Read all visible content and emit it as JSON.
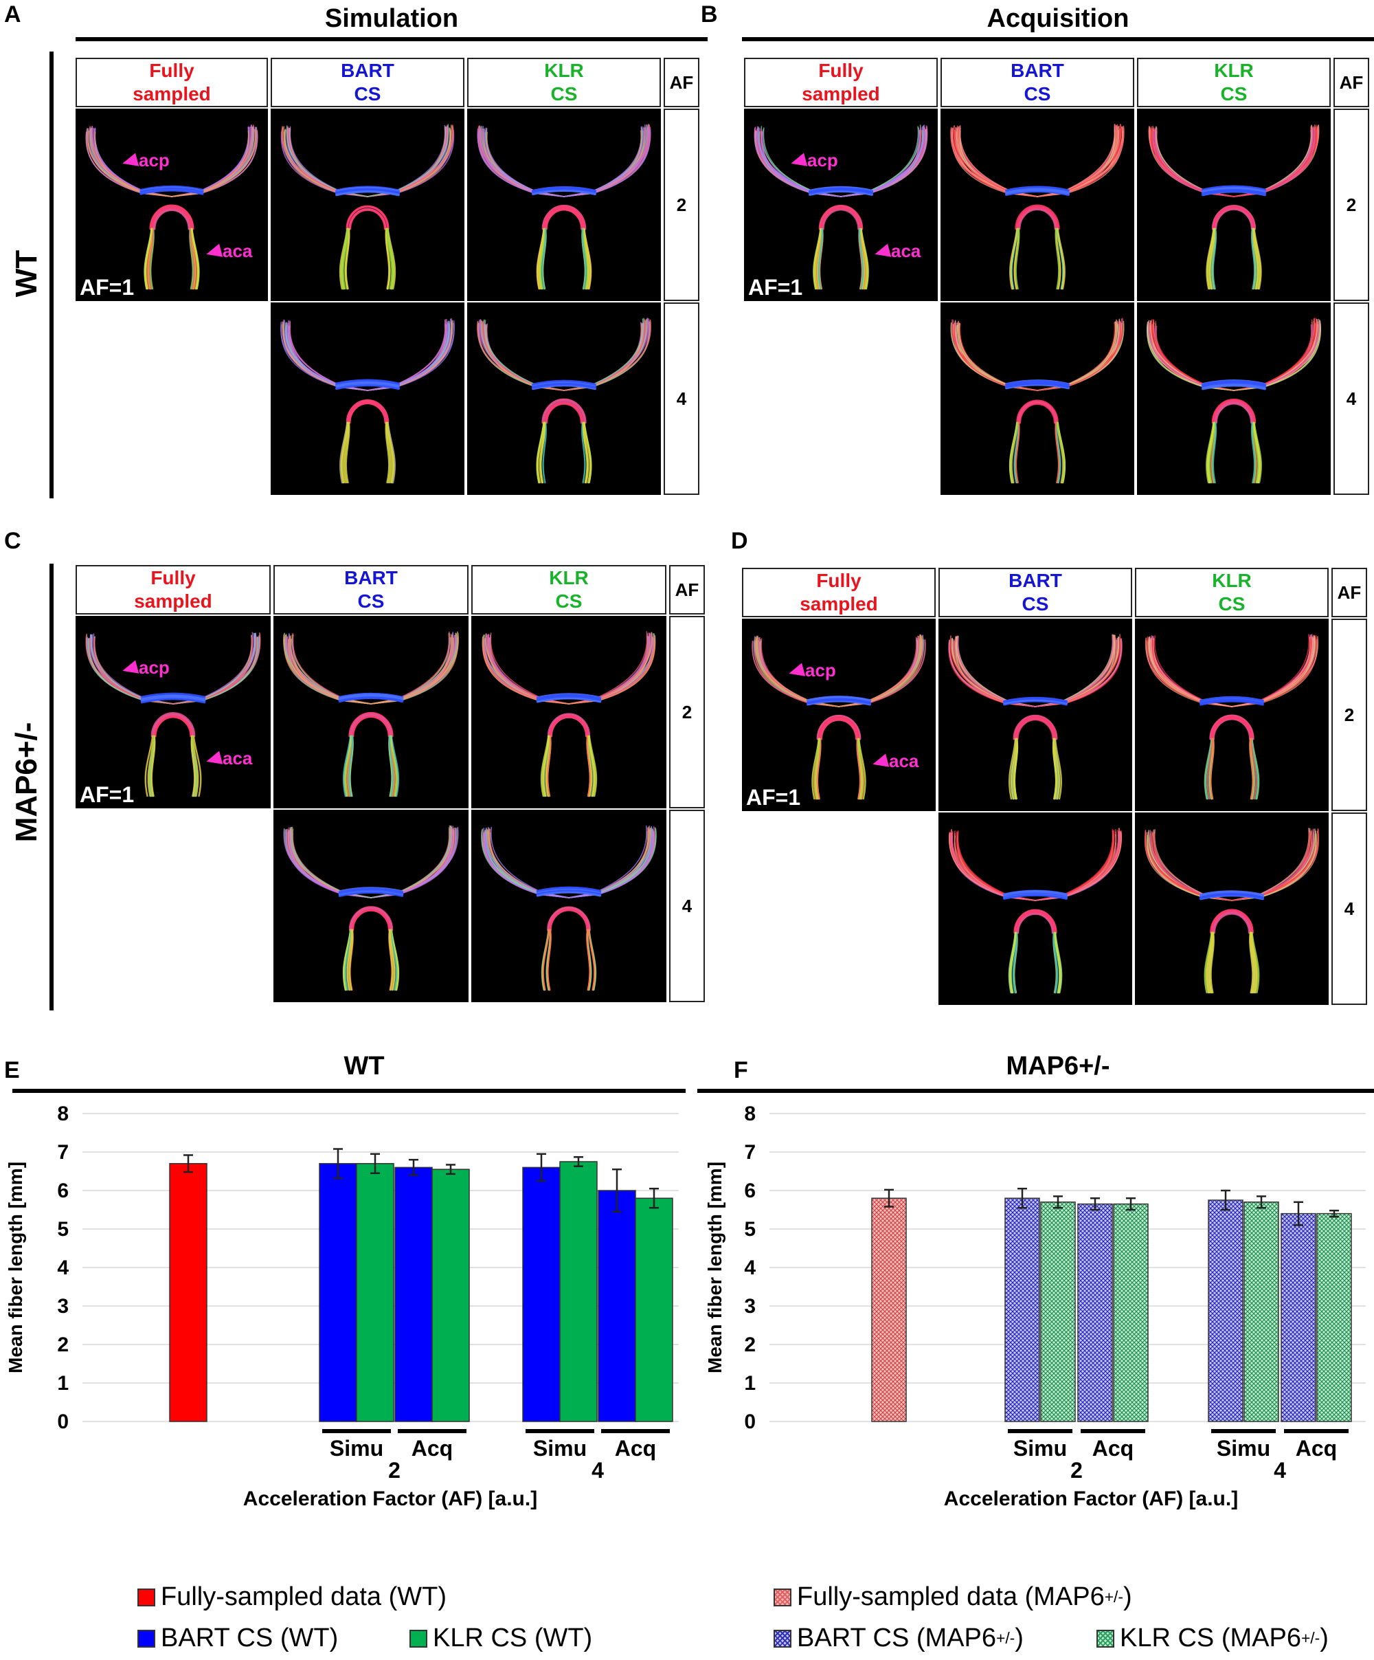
{
  "panels": {
    "A": {
      "letter": "A",
      "title": "Simulation"
    },
    "B": {
      "letter": "B",
      "title": "Acquisition"
    },
    "C": {
      "letter": "C"
    },
    "D": {
      "letter": "D"
    },
    "E": {
      "letter": "E",
      "title": "WT"
    },
    "F": {
      "letter": "F",
      "title": "MAP6+/-"
    }
  },
  "row_labels": {
    "wt": "WT",
    "map6": "MAP6+/-"
  },
  "grid_headers": {
    "fully_line1": "Fully",
    "fully_line2": "sampled",
    "bart_line1": "BART",
    "bart_line2": "CS",
    "klr_line1": "KLR",
    "klr_line2": "CS",
    "af": "AF"
  },
  "af_rows": [
    "2",
    "4"
  ],
  "image_labels": {
    "af1": "AF=1",
    "acp": "acp",
    "aca": "aca"
  },
  "colors": {
    "fully": "#e8141e",
    "bart": "#1515d6",
    "klr": "#18b32b",
    "arrow": "#ff2fd0"
  },
  "chart_data": [
    {
      "type": "bar",
      "title": "WT",
      "ylabel": "Mean fiber length [mm]",
      "xlabel": "Acceleration Factor (AF) [a.u.]",
      "ylim": [
        0,
        8
      ],
      "yticks": [
        "0",
        "1",
        "2",
        "3",
        "4",
        "5",
        "6",
        "7",
        "8"
      ],
      "group_labels": [
        "2",
        "4"
      ],
      "sub_labels": [
        "Simu",
        "Acq",
        "Simu",
        "Acq"
      ],
      "pattern": false,
      "bars": [
        {
          "series": "Fully-sampled data (WT)",
          "value": 6.7,
          "err": 0.22
        },
        {
          "series": "BART CS (WT)",
          "group": "2",
          "sub": "Simu",
          "value": 6.7,
          "err": 0.38
        },
        {
          "series": "KLR CS (WT)",
          "group": "2",
          "sub": "Simu",
          "value": 6.7,
          "err": 0.25
        },
        {
          "series": "BART CS (WT)",
          "group": "2",
          "sub": "Acq",
          "value": 6.6,
          "err": 0.2
        },
        {
          "series": "KLR CS (WT)",
          "group": "2",
          "sub": "Acq",
          "value": 6.55,
          "err": 0.12
        },
        {
          "series": "BART CS (WT)",
          "group": "4",
          "sub": "Simu",
          "value": 6.6,
          "err": 0.35
        },
        {
          "series": "KLR CS (WT)",
          "group": "4",
          "sub": "Simu",
          "value": 6.75,
          "err": 0.12
        },
        {
          "series": "BART CS (WT)",
          "group": "4",
          "sub": "Acq",
          "value": 6.0,
          "err": 0.55
        },
        {
          "series": "KLR CS (WT)",
          "group": "4",
          "sub": "Acq",
          "value": 5.8,
          "err": 0.25
        }
      ]
    },
    {
      "type": "bar",
      "title": "MAP6+/-",
      "ylabel": "Mean fiber length [mm]",
      "xlabel": "Acceleration Factor (AF) [a.u.]",
      "ylim": [
        0,
        8
      ],
      "yticks": [
        "0",
        "1",
        "2",
        "3",
        "4",
        "5",
        "6",
        "7",
        "8"
      ],
      "group_labels": [
        "2",
        "4"
      ],
      "sub_labels": [
        "Simu",
        "Acq",
        "Simu",
        "Acq"
      ],
      "pattern": true,
      "bars": [
        {
          "series": "Fully-sampled data (MAP6+/-)",
          "value": 5.8,
          "err": 0.22
        },
        {
          "series": "BART CS (MAP6+/-)",
          "group": "2",
          "sub": "Simu",
          "value": 5.8,
          "err": 0.25
        },
        {
          "series": "KLR CS (MAP6+/-)",
          "group": "2",
          "sub": "Simu",
          "value": 5.7,
          "err": 0.15
        },
        {
          "series": "BART CS (MAP6+/-)",
          "group": "2",
          "sub": "Acq",
          "value": 5.65,
          "err": 0.15
        },
        {
          "series": "KLR CS (MAP6+/-)",
          "group": "2",
          "sub": "Acq",
          "value": 5.65,
          "err": 0.15
        },
        {
          "series": "BART CS (MAP6+/-)",
          "group": "4",
          "sub": "Simu",
          "value": 5.75,
          "err": 0.25
        },
        {
          "series": "KLR CS (MAP6+/-)",
          "group": "4",
          "sub": "Simu",
          "value": 5.7,
          "err": 0.15
        },
        {
          "series": "BART CS (MAP6+/-)",
          "group": "4",
          "sub": "Acq",
          "value": 5.4,
          "err": 0.3
        },
        {
          "series": "KLR CS (MAP6+/-)",
          "group": "4",
          "sub": "Acq",
          "value": 5.4,
          "err": 0.08
        }
      ]
    }
  ],
  "legend": {
    "wt_fully": "Fully-sampled data (WT)",
    "wt_bart": "BART CS (WT)",
    "wt_klr": "KLR CS (WT)",
    "map_fully_pre": "Fully-sampled data (MAP6",
    "map_bart_pre": "BART CS (MAP6",
    "map_klr_pre": "KLR CS (MAP6",
    "sup": "+/-",
    "close": ")"
  }
}
